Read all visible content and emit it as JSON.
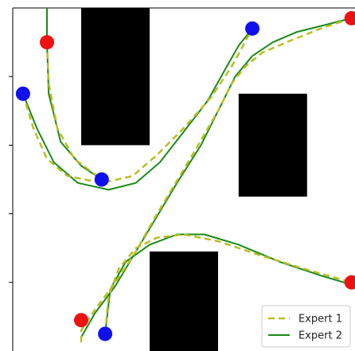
{
  "chart_data": {
    "type": "line",
    "title": "",
    "xlabel": "",
    "ylabel": "",
    "xlim": [
      0,
      10
    ],
    "ylim": [
      0,
      10
    ],
    "grid": false,
    "legend_position": "bottom-right",
    "xtick_labels": [],
    "ytick_labels": [],
    "obstacles": [
      {
        "x0": 2.0,
        "x1": 4.0,
        "y0": 6.0,
        "y1": 10.0
      },
      {
        "x0": 6.6,
        "x1": 8.6,
        "y0": 4.5,
        "y1": 7.5
      },
      {
        "x0": 4.0,
        "x1": 6.0,
        "y0": 0.0,
        "y1": 2.9
      }
    ],
    "start_points": [
      {
        "x": 1.0,
        "y": 9.0
      },
      {
        "x": 9.9,
        "y": 9.7
      },
      {
        "x": 2.0,
        "y": 0.9
      },
      {
        "x": 9.9,
        "y": 2.0
      }
    ],
    "goal_points": [
      {
        "x": 0.3,
        "y": 7.5
      },
      {
        "x": 2.6,
        "y": 5.0
      },
      {
        "x": 7.0,
        "y": 9.4
      },
      {
        "x": 2.7,
        "y": 0.5
      }
    ],
    "series": [
      {
        "name": "Expert 1",
        "color": "#bcbd22",
        "style": "dashed",
        "paths": [
          [
            [
              0.3,
              7.5
            ],
            [
              0.6,
              6.5
            ],
            [
              1.0,
              5.6
            ],
            [
              1.6,
              5.1
            ],
            [
              2.6,
              4.9
            ],
            [
              3.5,
              5.1
            ],
            [
              4.2,
              5.7
            ],
            [
              5.0,
              6.5
            ],
            [
              5.8,
              7.4
            ],
            [
              6.4,
              8.3
            ],
            [
              7.0,
              9.4
            ]
          ],
          [
            [
              1.0,
              9.0
            ],
            [
              1.05,
              7.8
            ],
            [
              1.3,
              6.5
            ],
            [
              1.8,
              5.6
            ],
            [
              2.6,
              5.0
            ]
          ],
          [
            [
              9.9,
              9.7
            ],
            [
              9.0,
              9.4
            ],
            [
              8.0,
              9.0
            ],
            [
              7.3,
              8.7
            ],
            [
              6.8,
              8.3
            ],
            [
              6.4,
              7.8
            ],
            [
              6.0,
              7.0
            ],
            [
              5.3,
              5.8
            ],
            [
              4.7,
              4.8
            ],
            [
              4.1,
              3.8
            ],
            [
              3.6,
              2.9
            ],
            [
              3.0,
              2.0
            ],
            [
              2.4,
              1.2
            ],
            [
              2.0,
              0.6
            ],
            [
              2.0,
              0.2
            ]
          ],
          [
            [
              2.7,
              0.5
            ],
            [
              2.8,
              1.6
            ],
            [
              3.1,
              2.4
            ],
            [
              3.6,
              3.0
            ],
            [
              4.2,
              3.3
            ],
            [
              5.0,
              3.4
            ],
            [
              6.0,
              3.2
            ],
            [
              7.2,
              2.8
            ],
            [
              8.5,
              2.4
            ],
            [
              9.9,
              2.0
            ]
          ]
        ]
      },
      {
        "name": "Expert 2",
        "color": "#1a8a1a",
        "style": "solid",
        "paths": [
          [
            [
              0.3,
              7.5
            ],
            [
              0.7,
              6.5
            ],
            [
              1.2,
              5.5
            ],
            [
              1.9,
              4.9
            ],
            [
              2.8,
              4.7
            ],
            [
              3.6,
              4.9
            ],
            [
              4.3,
              5.5
            ],
            [
              5.0,
              6.4
            ],
            [
              5.7,
              7.3
            ],
            [
              6.2,
              8.2
            ],
            [
              6.6,
              8.9
            ],
            [
              7.0,
              9.4
            ]
          ],
          [
            [
              1.0,
              9.0
            ],
            [
              1.0,
              10.0
            ]
          ],
          [
            [
              1.0,
              9.0
            ],
            [
              1.05,
              7.5
            ],
            [
              1.4,
              6.1
            ],
            [
              2.0,
              5.4
            ],
            [
              2.6,
              5.0
            ]
          ],
          [
            [
              9.9,
              9.7
            ],
            [
              9.1,
              9.5
            ],
            [
              8.3,
              9.3
            ],
            [
              7.6,
              9.0
            ],
            [
              7.0,
              8.6
            ],
            [
              6.5,
              8.0
            ],
            [
              6.1,
              7.2
            ],
            [
              5.5,
              6.0
            ],
            [
              4.8,
              4.9
            ],
            [
              4.2,
              3.9
            ],
            [
              3.6,
              2.9
            ],
            [
              3.0,
              1.9
            ],
            [
              2.4,
              1.1
            ],
            [
              2.0,
              0.4
            ]
          ],
          [
            [
              2.7,
              0.5
            ],
            [
              2.85,
              1.8
            ],
            [
              3.3,
              2.6
            ],
            [
              4.0,
              3.1
            ],
            [
              4.8,
              3.4
            ],
            [
              5.6,
              3.4
            ],
            [
              6.6,
              3.1
            ],
            [
              7.8,
              2.6
            ],
            [
              9.0,
              2.2
            ],
            [
              10.0,
              1.9
            ]
          ]
        ]
      }
    ]
  }
}
